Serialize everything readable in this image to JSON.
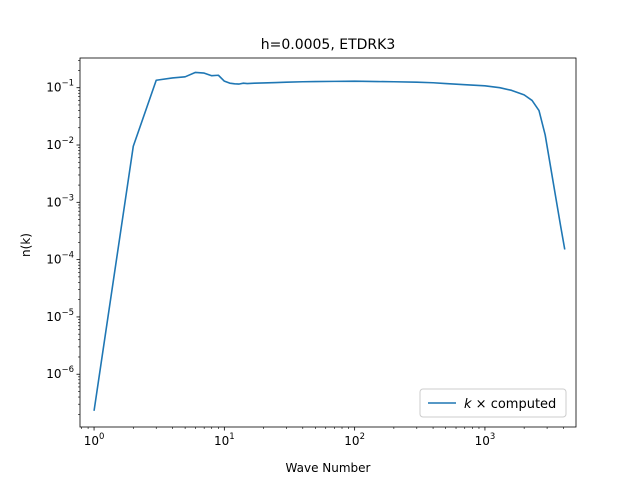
{
  "chart_data": {
    "type": "line",
    "title": "h=0.0005, ETDRK3",
    "xlabel": "Wave Number",
    "ylabel": "n(k)",
    "xscale": "log",
    "yscale": "log",
    "xlim": [
      0.78,
      5000
    ],
    "ylim": [
      1.2e-07,
      0.33
    ],
    "x_ticks": [
      {
        "value": 1,
        "mant": "10",
        "exp": "0"
      },
      {
        "value": 10,
        "mant": "10",
        "exp": "1"
      },
      {
        "value": 100,
        "mant": "10",
        "exp": "2"
      },
      {
        "value": 1000,
        "mant": "10",
        "exp": "3"
      }
    ],
    "y_ticks": [
      {
        "value": 1e-06,
        "mant": "10",
        "exp": "−6"
      },
      {
        "value": 1e-05,
        "mant": "10",
        "exp": "−5"
      },
      {
        "value": 0.0001,
        "mant": "10",
        "exp": "−4"
      },
      {
        "value": 0.001,
        "mant": "10",
        "exp": "−3"
      },
      {
        "value": 0.01,
        "mant": "10",
        "exp": "−2"
      },
      {
        "value": 0.1,
        "mant": "10",
        "exp": "−1"
      }
    ],
    "grid": false,
    "legend_position": "lower-right",
    "series": [
      {
        "name": "k × computed",
        "legend_italic": "k",
        "legend_rest": " × computed",
        "color": "#1f77b4",
        "x": [
          1,
          2,
          3,
          4,
          5,
          6,
          7,
          8,
          9,
          10,
          11,
          12,
          13,
          14,
          15,
          17,
          20,
          25,
          30,
          40,
          50,
          70,
          100,
          150,
          200,
          300,
          400,
          500,
          700,
          1000,
          1300,
          1600,
          2000,
          2300,
          2600,
          2900,
          3200,
          3500,
          3800,
          4100
        ],
        "y": [
          2.3e-07,
          0.0095,
          0.135,
          0.148,
          0.155,
          0.185,
          0.18,
          0.162,
          0.165,
          0.13,
          0.12,
          0.117,
          0.116,
          0.12,
          0.118,
          0.12,
          0.121,
          0.123,
          0.125,
          0.127,
          0.128,
          0.129,
          0.13,
          0.128,
          0.127,
          0.125,
          0.122,
          0.118,
          0.113,
          0.108,
          0.1,
          0.09,
          0.075,
          0.06,
          0.04,
          0.015,
          0.004,
          0.0012,
          0.0004,
          0.00015
        ]
      }
    ]
  }
}
